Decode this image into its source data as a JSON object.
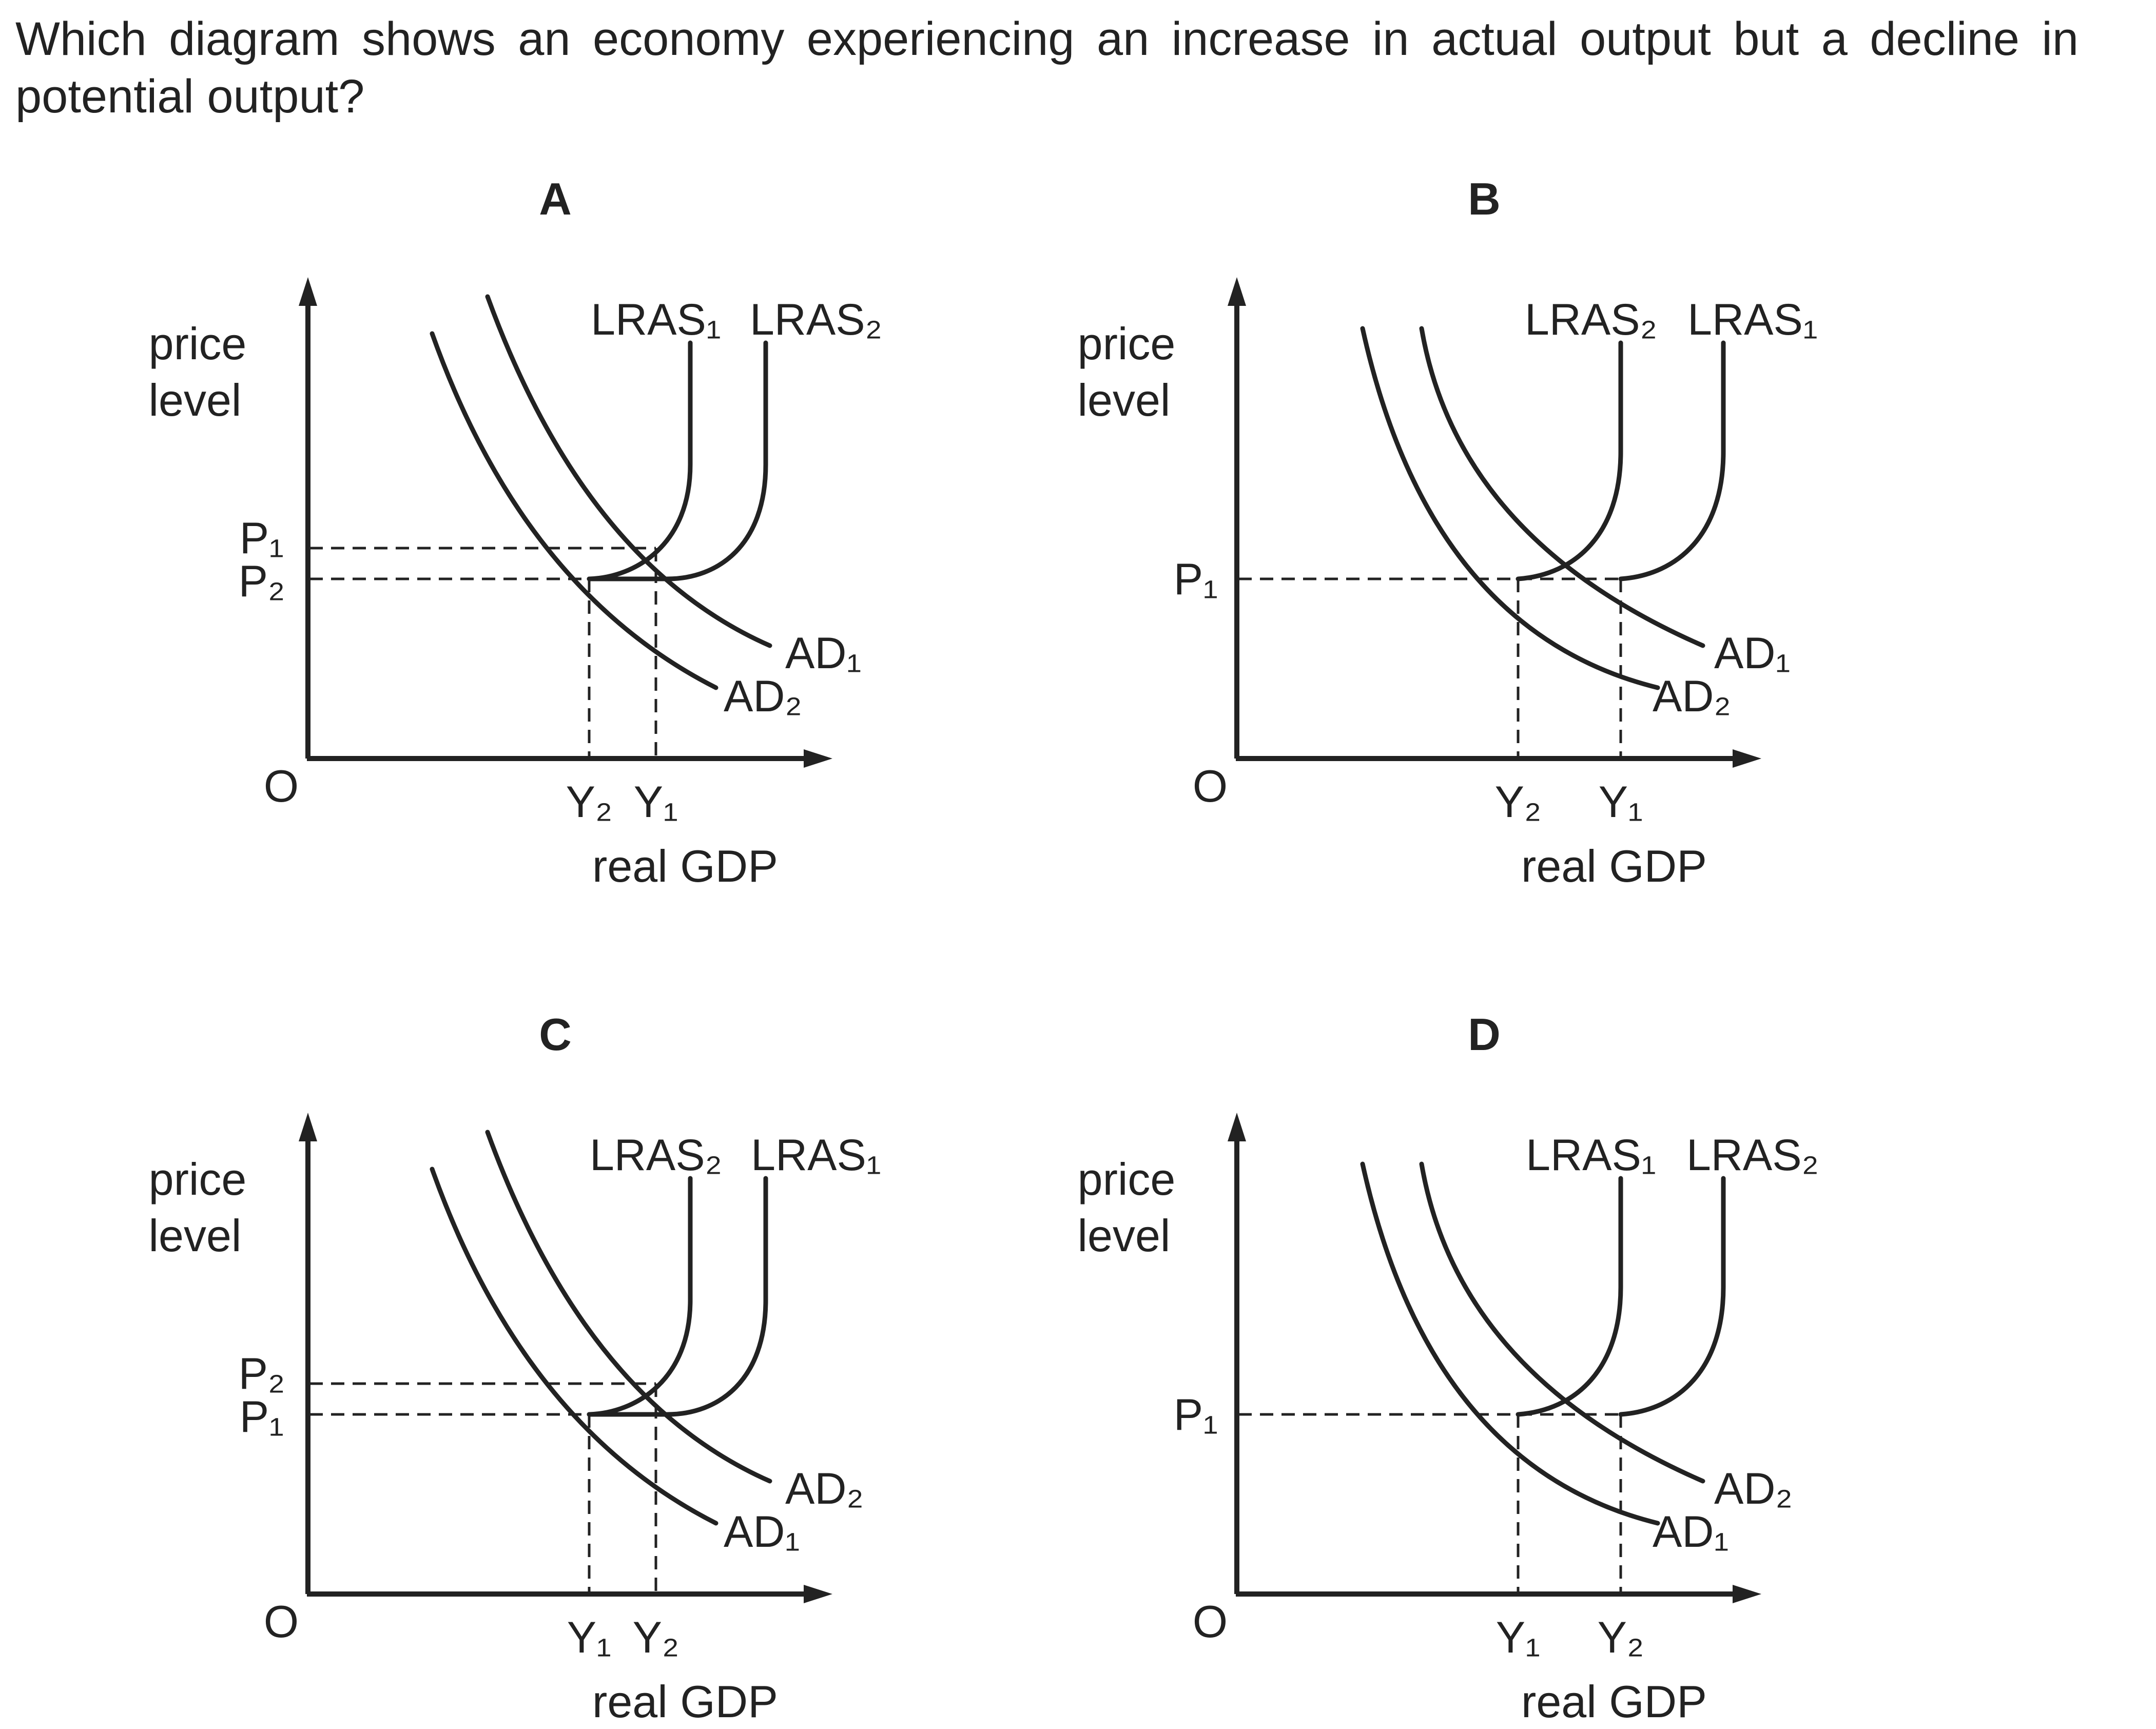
{
  "question": "Which diagram shows an economy experiencing an increase in actual output but a decline in potential output?",
  "colors": {
    "ink": "#222222",
    "background": "#ffffff"
  },
  "axis_labels": {
    "y_line1": "price",
    "y_line2": "level",
    "x": "real GDP",
    "origin": "O"
  },
  "panels": [
    {
      "title": "A",
      "lras_left": "LRAS₁",
      "lras_right": "LRAS₂",
      "ad_upper": "AD₁",
      "ad_lower": "AD₂",
      "price_upper": "P₁",
      "price_lower": "P₂",
      "single_price": false,
      "gdp_left": "Y₂",
      "gdp_right": "Y₁"
    },
    {
      "title": "B",
      "lras_left": "LRAS₂",
      "lras_right": "LRAS₁",
      "ad_upper": "AD₁",
      "ad_lower": "AD₂",
      "price_upper": "P₁",
      "price_lower": "",
      "single_price": true,
      "gdp_left": "Y₂",
      "gdp_right": "Y₁"
    },
    {
      "title": "C",
      "lras_left": "LRAS₂",
      "lras_right": "LRAS₁",
      "ad_upper": "AD₂",
      "ad_lower": "AD₁",
      "price_upper": "P₂",
      "price_lower": "P₁",
      "single_price": false,
      "gdp_left": "Y₁",
      "gdp_right": "Y₂"
    },
    {
      "title": "D",
      "lras_left": "LRAS₁",
      "lras_right": "LRAS₂",
      "ad_upper": "AD₂",
      "ad_lower": "AD₁",
      "price_upper": "P₁",
      "price_lower": "",
      "single_price": true,
      "gdp_left": "Y₁",
      "gdp_right": "Y₂"
    }
  ]
}
